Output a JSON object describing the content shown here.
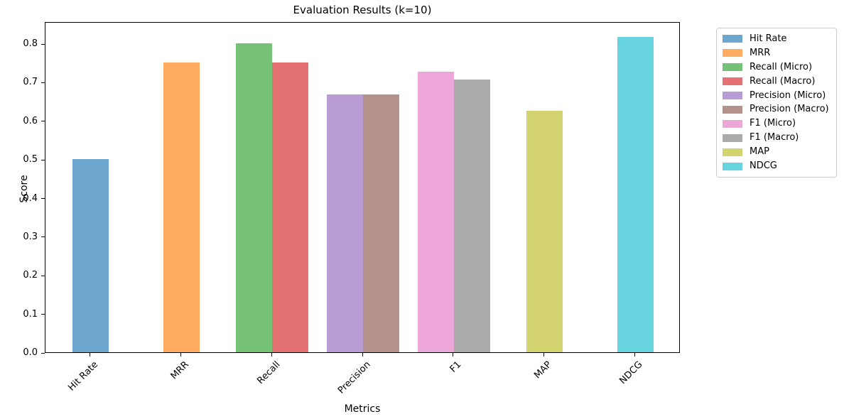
{
  "chart_data": {
    "type": "bar",
    "title": "Evaluation Results (k=10)",
    "xlabel": "Metrics",
    "ylabel": "Score",
    "background_color": "#ffffff",
    "grid": false,
    "x_tick_rotation_deg": 45,
    "categories": [
      "Hit Rate",
      "MRR",
      "Recall",
      "Precision",
      "F1",
      "MAP",
      "NDCG"
    ],
    "ylim": [
      0,
      0.857
    ],
    "yticks": [
      {
        "label": "0.0",
        "value": 0.0
      },
      {
        "label": "0.1",
        "value": 0.1
      },
      {
        "label": "0.2",
        "value": 0.2
      },
      {
        "label": "0.3",
        "value": 0.3
      },
      {
        "label": "0.4",
        "value": 0.4
      },
      {
        "label": "0.5",
        "value": 0.5
      },
      {
        "label": "0.6",
        "value": 0.6
      },
      {
        "label": "0.7",
        "value": 0.7
      },
      {
        "label": "0.8",
        "value": 0.8
      }
    ],
    "bar_width_fraction": 0.4,
    "series": [
      {
        "name": "Hit Rate",
        "category": "Hit Rate",
        "value": 0.5,
        "color": "#6DA6CE"
      },
      {
        "name": "MRR",
        "category": "MRR",
        "value": 0.75,
        "color": "#FFAB62"
      },
      {
        "name": "Recall (Micro)",
        "category": "Recall",
        "value": 0.8,
        "color": "#75C175"
      },
      {
        "name": "Recall (Macro)",
        "category": "Recall",
        "value": 0.75,
        "color": "#E47273"
      },
      {
        "name": "Precision (Micro)",
        "category": "Precision",
        "value": 0.667,
        "color": "#B99CD4"
      },
      {
        "name": "Precision (Macro)",
        "category": "Precision",
        "value": 0.667,
        "color": "#B4918A"
      },
      {
        "name": "F1 (Micro)",
        "category": "F1",
        "value": 0.727,
        "color": "#ECA6D7"
      },
      {
        "name": "F1 (Macro)",
        "category": "F1",
        "value": 0.706,
        "color": "#ABABAB"
      },
      {
        "name": "MAP",
        "category": "MAP",
        "value": 0.625,
        "color": "#D3D46F"
      },
      {
        "name": "NDCG",
        "category": "NDCG",
        "value": 0.816,
        "color": "#68D4DF"
      }
    ],
    "legend": {
      "position": "outside-upper-right",
      "border_color": "#cccccc",
      "entries": [
        "Hit Rate",
        "MRR",
        "Recall (Micro)",
        "Recall (Macro)",
        "Precision (Micro)",
        "Precision (Macro)",
        "F1 (Micro)",
        "F1 (Macro)",
        "MAP",
        "NDCG"
      ]
    }
  }
}
